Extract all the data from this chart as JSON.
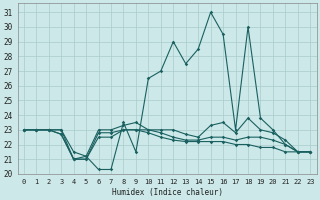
{
  "xlabel": "Humidex (Indice chaleur)",
  "xlim": [
    -0.5,
    23.5
  ],
  "ylim": [
    20,
    31.6
  ],
  "yticks": [
    20,
    21,
    22,
    23,
    24,
    25,
    26,
    27,
    28,
    29,
    30,
    31
  ],
  "xticks": [
    0,
    1,
    2,
    3,
    4,
    5,
    6,
    7,
    8,
    9,
    10,
    11,
    12,
    13,
    14,
    15,
    16,
    17,
    18,
    19,
    20,
    21,
    22,
    23
  ],
  "background_color": "#cce8e8",
  "grid_color": "#aacccc",
  "line_color": "#1a6060",
  "series": [
    [
      23.0,
      23.0,
      23.0,
      23.0,
      21.0,
      21.2,
      20.3,
      20.3,
      23.5,
      21.5,
      26.5,
      27.0,
      29.0,
      27.5,
      28.5,
      31.0,
      29.5,
      23.0,
      30.0,
      23.8,
      23.0,
      22.0,
      21.5,
      21.5
    ],
    [
      23.0,
      23.0,
      23.0,
      23.0,
      21.5,
      21.2,
      23.0,
      23.0,
      23.3,
      23.5,
      23.0,
      23.0,
      23.0,
      22.7,
      22.5,
      23.3,
      23.5,
      22.8,
      23.8,
      23.0,
      22.8,
      22.3,
      21.5,
      21.5
    ],
    [
      23.0,
      23.0,
      23.0,
      22.7,
      21.0,
      21.0,
      22.8,
      22.8,
      23.0,
      23.0,
      23.0,
      22.8,
      22.5,
      22.3,
      22.3,
      22.5,
      22.5,
      22.3,
      22.5,
      22.5,
      22.3,
      22.0,
      21.5,
      21.5
    ],
    [
      23.0,
      23.0,
      23.0,
      22.7,
      21.0,
      21.0,
      22.5,
      22.5,
      23.0,
      23.0,
      22.8,
      22.5,
      22.3,
      22.2,
      22.2,
      22.2,
      22.2,
      22.0,
      22.0,
      21.8,
      21.8,
      21.5,
      21.5,
      21.5
    ]
  ]
}
